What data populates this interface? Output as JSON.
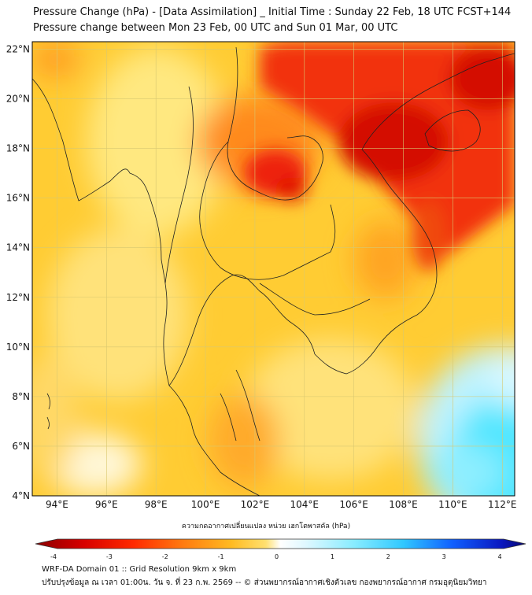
{
  "header": {
    "title_line1": "Pressure Change (hPa) - [Data Assimilation] _ Initial Time : Sunday 22 Feb, 18 UTC FCST+144",
    "title_line2": "Pressure change between Mon 23 Feb, 00 UTC and Sun 01 Mar, 00 UTC"
  },
  "map": {
    "lat_labels": [
      "22°N",
      "20°N",
      "18°N",
      "16°N",
      "14°N",
      "12°N",
      "10°N",
      "8°N",
      "6°N",
      "4°N"
    ],
    "lon_labels": [
      "94°E",
      "96°E",
      "98°E",
      "100°E",
      "102°E",
      "104°E",
      "106°E",
      "108°E",
      "110°E",
      "112°E"
    ],
    "lon_range_deg": [
      93,
      112.5
    ],
    "lat_range_deg": [
      4,
      22.3
    ],
    "colors": {
      "background_yellow": "#ffcc33",
      "pale_yellow": "#ffee88",
      "orange": "#ff8a1e",
      "red": "#ee1b0b",
      "dark_red": "#c40000",
      "cyan": "#3fe8ff",
      "land_line": "#222222",
      "grid": "#d8c870"
    }
  },
  "colorbar": {
    "title": "ความกดอากาศเปลี่ยนแปลง หน่วย เฮกโตพาสคัล (hPa)",
    "ticks": [
      "-4",
      "-3",
      "-2",
      "-1",
      "0",
      "1",
      "2",
      "3",
      "4"
    ],
    "range": [
      -4,
      4
    ],
    "colors": [
      "#8b0000",
      "#e00000",
      "#ff4a00",
      "#ff9a1a",
      "#ffd020",
      "#fff0a0",
      "#ffffff",
      "#c8f4ff",
      "#70e6ff",
      "#1aa0ff",
      "#1030e0",
      "#0a0a8a"
    ]
  },
  "footer": {
    "line1": "WRF-DA Domain 01 :: Grid Resolution 9km x 9km",
    "line2": "ปรับปรุงข้อมูล ณ เวลา 01:00น. วัน จ. ที่ 23 ก.พ. 2569 -- © ส่วนพยากรณ์อากาศเชิงตัวเลข กองพยากรณ์อากาศ กรมอุตุนิยมวิทยา"
  }
}
